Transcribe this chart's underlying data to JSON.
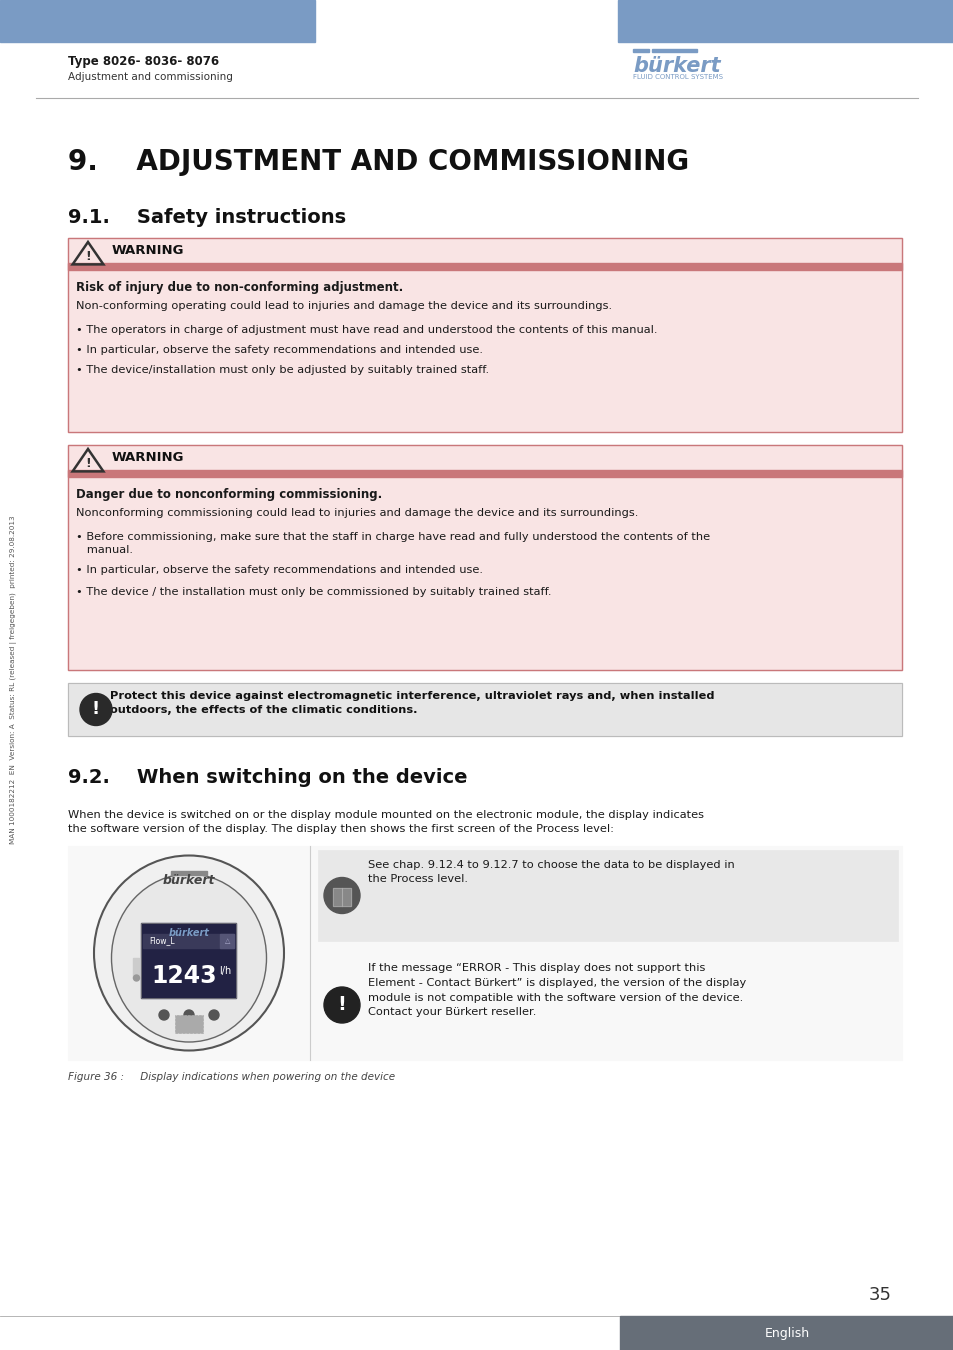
{
  "page_bg": "#ffffff",
  "header_bar_color": "#7a9bc4",
  "header_text_type": "Type 8026- 8036- 8076",
  "header_text_sub": "Adjustment and commissioning",
  "section_title": "9.    ADJUSTMENT AND COMMISSIONING",
  "section_sub": "9.1.    Safety instructions",
  "section_sub2": "9.2.    When switching on the device",
  "warning_bg": "#f9e4e4",
  "warning_bar_color": "#c9777a",
  "warning_border_color": "#c9777a",
  "notice_bg": "#e6e6e6",
  "sidebar_text": "MAN 1000182212  EN  Version: A  Status: RL (released | freigegeben)  printed: 29.08.2013",
  "page_number": "35",
  "page_number_bg": "#666e78",
  "page_number_text_color": "#ffffff",
  "lang_label": "English",
  "lang_bg": "#666e78",
  "lang_text_color": "#ffffff"
}
